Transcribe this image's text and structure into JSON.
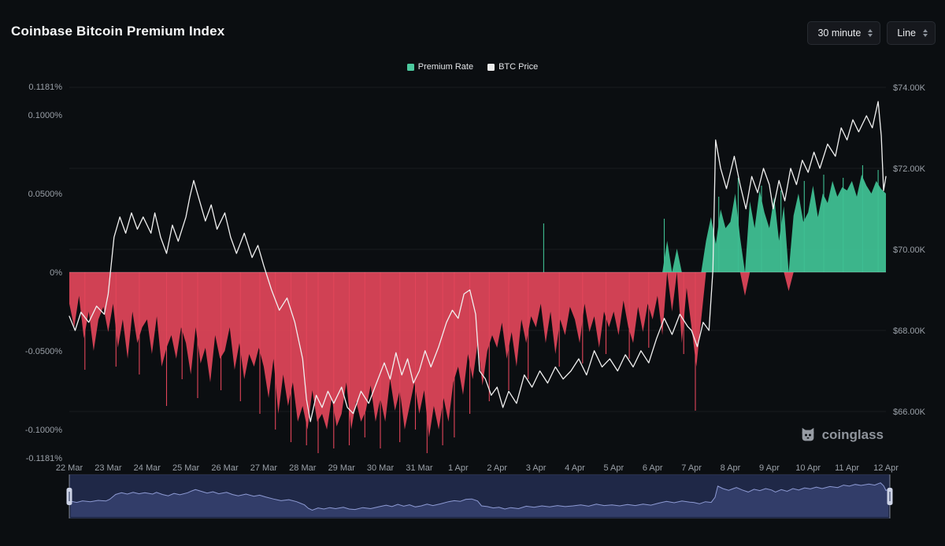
{
  "header": {
    "title": "Coinbase Bitcoin Premium Index",
    "interval_select": "30 minute",
    "type_select": "Line"
  },
  "legend": {
    "items": [
      {
        "label": "Premium Rate",
        "color": "#4cc99e"
      },
      {
        "label": "BTC Price",
        "color": "#ececec"
      }
    ]
  },
  "watermark": {
    "text": "coinglass"
  },
  "chart_data": {
    "type": "mixed",
    "title": "Coinbase Bitcoin Premium Index",
    "grid": "horizontal-faint",
    "legend_position": "top-center",
    "x_axis": {
      "unit": "date",
      "range_days": [
        0,
        21
      ],
      "labels": [
        "22 Mar",
        "23 Mar",
        "24 Mar",
        "25 Mar",
        "26 Mar",
        "27 Mar",
        "28 Mar",
        "29 Mar",
        "30 Mar",
        "31 Mar",
        "1 Apr",
        "2 Apr",
        "3 Apr",
        "4 Apr",
        "5 Apr",
        "6 Apr",
        "7 Apr",
        "8 Apr",
        "9 Apr",
        "10 Apr",
        "11 Apr",
        "12 Apr"
      ]
    },
    "y_left": {
      "label": "Premium Rate",
      "range": [
        -0.1181,
        0.1181
      ],
      "ticks": [
        {
          "value": 0.1181,
          "label": "0.1181%"
        },
        {
          "value": 0.1,
          "label": "0.1000%"
        },
        {
          "value": 0.05,
          "label": "0.0500%"
        },
        {
          "value": 0,
          "label": "0%"
        },
        {
          "value": -0.05,
          "label": "-0.0500%"
        },
        {
          "value": -0.1,
          "label": "-0.1000%"
        },
        {
          "value": -0.1181,
          "label": "-0.1181%"
        }
      ]
    },
    "y_right": {
      "label": "BTC Price",
      "range": [
        64.8,
        74.3
      ],
      "ticks": [
        {
          "value": 74,
          "label": "$74.00K"
        },
        {
          "value": 72,
          "label": "$72.00K"
        },
        {
          "value": 70,
          "label": "$70.00K"
        },
        {
          "value": 68,
          "label": "$68.00K"
        },
        {
          "value": 66,
          "label": "$66.00K"
        }
      ]
    },
    "series": [
      {
        "name": "Premium Rate",
        "type": "area",
        "unit": "%",
        "pos_color": "#3fbf92",
        "neg_color": "#e2455a",
        "t0": 0,
        "dt": 0.125,
        "values": [
          -0.02,
          -0.035,
          -0.015,
          -0.042,
          -0.025,
          -0.05,
          -0.03,
          -0.022,
          -0.038,
          -0.02,
          -0.048,
          -0.03,
          -0.055,
          -0.025,
          -0.045,
          -0.035,
          -0.03,
          -0.052,
          -0.028,
          -0.06,
          -0.048,
          -0.04,
          -0.055,
          -0.035,
          -0.045,
          -0.065,
          -0.035,
          -0.058,
          -0.048,
          -0.07,
          -0.04,
          -0.055,
          -0.05,
          -0.035,
          -0.062,
          -0.045,
          -0.068,
          -0.052,
          -0.06,
          -0.048,
          -0.06,
          -0.08,
          -0.055,
          -0.09,
          -0.065,
          -0.085,
          -0.07,
          -0.095,
          -0.085,
          -0.1,
          -0.075,
          -0.095,
          -0.09,
          -0.1,
          -0.08,
          -0.098,
          -0.09,
          -0.07,
          -0.1,
          -0.082,
          -0.095,
          -0.088,
          -0.072,
          -0.095,
          -0.08,
          -0.095,
          -0.068,
          -0.088,
          -0.075,
          -0.1,
          -0.085,
          -0.07,
          -0.09,
          -0.075,
          -0.105,
          -0.085,
          -0.1,
          -0.08,
          -0.095,
          -0.07,
          -0.06,
          -0.078,
          -0.052,
          -0.068,
          -0.045,
          -0.072,
          -0.05,
          -0.04,
          -0.048,
          -0.032,
          -0.055,
          -0.038,
          -0.06,
          -0.03,
          -0.045,
          -0.028,
          -0.035,
          -0.02,
          -0.045,
          -0.025,
          -0.052,
          -0.03,
          -0.04,
          -0.022,
          -0.03,
          -0.045,
          -0.02,
          -0.038,
          -0.028,
          -0.048,
          -0.025,
          -0.035,
          -0.025,
          -0.04,
          -0.018,
          -0.035,
          -0.045,
          -0.022,
          -0.038,
          -0.02,
          -0.03,
          -0.015,
          -0.04,
          0.02,
          -0.025,
          0.015,
          -0.045,
          -0.01,
          -0.035,
          -0.06,
          -0.03,
          0.02,
          0.035,
          0.018,
          0.04,
          0.028,
          0.032,
          0.05,
          0.022,
          -0.015,
          0.045,
          0.028,
          0.052,
          0.038,
          0.028,
          0.048,
          0.02,
          0.042,
          -0.012,
          0.036,
          0.05,
          0.032,
          0.038,
          0.055,
          0.035,
          0.05,
          0.044,
          0.058,
          0.048,
          0.054,
          0.052,
          0.058,
          0.048,
          0.062,
          0.055,
          0.05,
          0.058,
          0.053,
          0.05
        ]
      },
      {
        "name": "Premium Rate extreme spikes",
        "type": "spikes",
        "unit": "%",
        "points": [
          [
            0.4,
            -0.062
          ],
          [
            1.2,
            -0.06
          ],
          [
            1.8,
            -0.065
          ],
          [
            2.5,
            -0.085
          ],
          [
            2.9,
            -0.068
          ],
          [
            3.3,
            -0.08
          ],
          [
            3.9,
            -0.075
          ],
          [
            4.4,
            -0.082
          ],
          [
            4.9,
            -0.09
          ],
          [
            5.3,
            -0.1
          ],
          [
            5.7,
            -0.108
          ],
          [
            6.1,
            -0.11
          ],
          [
            6.4,
            -0.115
          ],
          [
            6.8,
            -0.112
          ],
          [
            7.2,
            -0.11
          ],
          [
            7.6,
            -0.105
          ],
          [
            8.0,
            -0.112
          ],
          [
            8.5,
            -0.108
          ],
          [
            8.9,
            -0.1
          ],
          [
            9.2,
            -0.115
          ],
          [
            9.6,
            -0.11
          ],
          [
            9.9,
            -0.105
          ],
          [
            10.3,
            -0.09
          ],
          [
            10.8,
            -0.082
          ],
          [
            11.3,
            -0.075
          ],
          [
            11.8,
            -0.068
          ],
          [
            12.2,
            0.031
          ],
          [
            12.6,
            -0.06
          ],
          [
            13.2,
            -0.058
          ],
          [
            13.8,
            -0.052
          ],
          [
            14.4,
            -0.055
          ],
          [
            14.9,
            -0.048
          ],
          [
            15.3,
            0.034
          ],
          [
            15.8,
            -0.052
          ],
          [
            16.1,
            -0.088
          ],
          [
            16.7,
            0.048
          ],
          [
            17.2,
            0.06
          ],
          [
            17.8,
            0.055
          ],
          [
            18.3,
            0.052
          ],
          [
            18.9,
            0.058
          ],
          [
            19.4,
            0.062
          ],
          [
            19.9,
            0.06
          ],
          [
            20.4,
            0.068
          ],
          [
            20.8,
            0.065
          ]
        ]
      },
      {
        "name": "BTC Price",
        "type": "line",
        "unit": "K USD",
        "color": "#f0f0f0",
        "t": [
          0,
          0.15,
          0.3,
          0.5,
          0.7,
          0.9,
          1.0,
          1.15,
          1.3,
          1.45,
          1.6,
          1.75,
          1.9,
          2.1,
          2.2,
          2.35,
          2.5,
          2.65,
          2.8,
          3.0,
          3.1,
          3.2,
          3.35,
          3.5,
          3.65,
          3.8,
          4.0,
          4.15,
          4.3,
          4.5,
          4.7,
          4.85,
          5.0,
          5.2,
          5.4,
          5.6,
          5.8,
          6.0,
          6.1,
          6.2,
          6.35,
          6.5,
          6.65,
          6.8,
          7.0,
          7.15,
          7.3,
          7.5,
          7.7,
          7.9,
          8.1,
          8.25,
          8.4,
          8.55,
          8.7,
          8.85,
          9.0,
          9.15,
          9.3,
          9.5,
          9.7,
          9.85,
          10.0,
          10.15,
          10.3,
          10.45,
          10.55,
          10.7,
          10.85,
          11.0,
          11.15,
          11.3,
          11.5,
          11.7,
          11.9,
          12.1,
          12.3,
          12.5,
          12.7,
          12.9,
          13.1,
          13.3,
          13.5,
          13.7,
          13.9,
          14.1,
          14.3,
          14.5,
          14.7,
          14.9,
          15.1,
          15.3,
          15.5,
          15.7,
          15.9,
          16.0,
          16.15,
          16.3,
          16.45,
          16.55,
          16.62,
          16.75,
          16.9,
          17.0,
          17.1,
          17.25,
          17.4,
          17.55,
          17.7,
          17.85,
          18.0,
          18.1,
          18.25,
          18.4,
          18.55,
          18.7,
          18.85,
          19.0,
          19.15,
          19.3,
          19.5,
          19.7,
          19.85,
          20.0,
          20.15,
          20.3,
          20.5,
          20.65,
          20.8,
          20.88,
          20.94,
          21.0
        ],
        "values": [
          68.35,
          68.0,
          68.45,
          68.2,
          68.6,
          68.4,
          68.9,
          70.3,
          70.8,
          70.4,
          70.9,
          70.5,
          70.8,
          70.4,
          70.9,
          70.3,
          69.9,
          70.6,
          70.2,
          70.8,
          71.3,
          71.7,
          71.2,
          70.7,
          71.1,
          70.5,
          70.9,
          70.3,
          69.9,
          70.4,
          69.8,
          70.1,
          69.6,
          69.0,
          68.5,
          68.8,
          68.2,
          67.3,
          66.3,
          65.75,
          66.4,
          66.1,
          66.5,
          66.2,
          66.6,
          66.1,
          65.95,
          66.5,
          66.2,
          66.7,
          67.2,
          66.8,
          67.45,
          66.9,
          67.3,
          66.7,
          67.0,
          67.5,
          67.1,
          67.6,
          68.2,
          68.5,
          68.3,
          68.9,
          69.0,
          68.4,
          67.0,
          66.8,
          66.4,
          66.6,
          66.1,
          66.5,
          66.2,
          66.9,
          66.6,
          67.0,
          66.7,
          67.1,
          66.8,
          67.0,
          67.3,
          66.9,
          67.5,
          67.1,
          67.3,
          67.0,
          67.4,
          67.1,
          67.5,
          67.2,
          67.8,
          68.3,
          67.9,
          68.4,
          68.1,
          68.0,
          67.6,
          68.2,
          68.0,
          69.5,
          72.7,
          72.0,
          71.5,
          71.9,
          72.3,
          71.6,
          71.0,
          71.8,
          71.4,
          72.0,
          71.6,
          71.0,
          71.7,
          71.2,
          72.0,
          71.6,
          72.2,
          71.9,
          72.4,
          72.0,
          72.6,
          72.3,
          73.0,
          72.7,
          73.2,
          72.9,
          73.3,
          73.0,
          73.65,
          72.8,
          71.45,
          71.8
        ]
      }
    ],
    "navigator": {
      "shows": "BTC Price",
      "bg": "#161e38",
      "line_color": "#8d9ad3",
      "fill_color": "rgba(99,117,195,0.28)",
      "selected_overlay": "rgba(120,140,210,0.10)",
      "handle_color": "#cdd3e6",
      "selected_range_days": [
        0,
        21
      ]
    }
  }
}
